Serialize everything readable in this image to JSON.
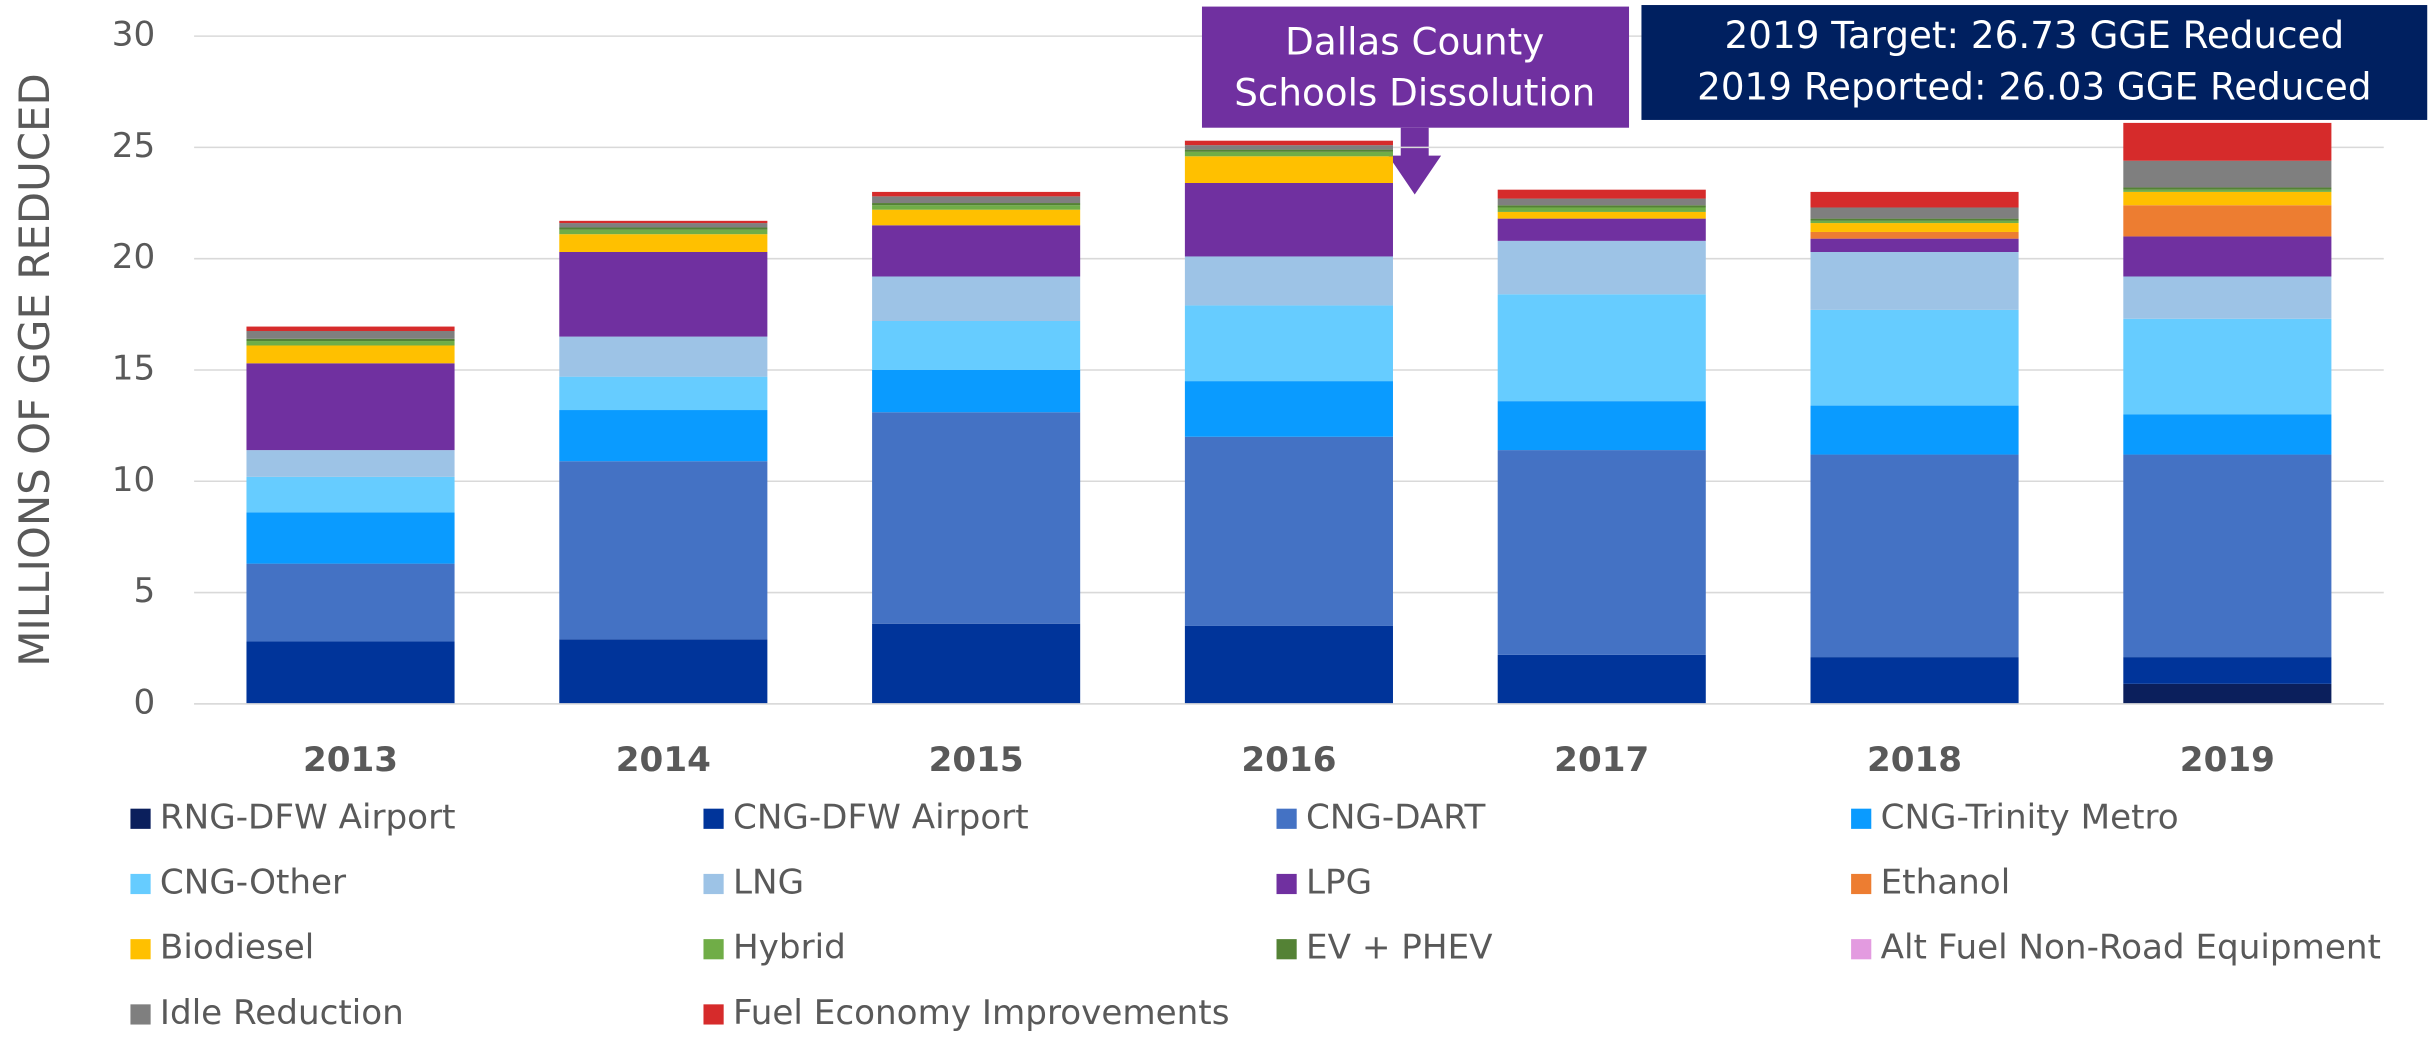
{
  "chart_data": {
    "type": "stacked_bar",
    "y_axis_label": "MILLIONS OF GGE REDUCED",
    "categories": [
      "2013",
      "2014",
      "2015",
      "2016",
      "2017",
      "2018",
      "2019"
    ],
    "ylim": [
      0,
      30
    ],
    "yticks": [
      0,
      5,
      10,
      15,
      20,
      25,
      30
    ],
    "grid": true,
    "legend": "bottom",
    "series": [
      {
        "name": "RNG-DFW Airport",
        "color": "#0b1f5c",
        "values": [
          0,
          0,
          0,
          0,
          0,
          0,
          0.9
        ]
      },
      {
        "name": "CNG-DFW Airport",
        "color": "#00349a",
        "values": [
          2.8,
          2.9,
          3.6,
          3.5,
          2.2,
          2.1,
          1.2
        ]
      },
      {
        "name": "CNG-DART",
        "color": "#4472c4",
        "values": [
          3.5,
          8.0,
          9.5,
          8.5,
          9.2,
          9.1,
          9.1
        ]
      },
      {
        "name": "CNG-Trinity Metro",
        "color": "#0a9bff",
        "values": [
          2.3,
          2.3,
          1.9,
          2.5,
          2.2,
          2.2,
          1.8
        ]
      },
      {
        "name": "CNG-Other",
        "color": "#66ccff",
        "values": [
          1.6,
          1.5,
          2.2,
          3.4,
          4.8,
          4.3,
          4.3
        ]
      },
      {
        "name": "LNG",
        "color": "#9dc3e6",
        "values": [
          1.2,
          1.8,
          2.0,
          2.2,
          2.4,
          2.6,
          1.9
        ]
      },
      {
        "name": "LPG",
        "color": "#7030a0",
        "values": [
          3.9,
          3.8,
          2.3,
          3.3,
          1.0,
          0.6,
          1.8
        ]
      },
      {
        "name": "Ethanol",
        "color": "#ed7d31",
        "values": [
          0,
          0,
          0,
          0,
          0,
          0.3,
          1.4
        ]
      },
      {
        "name": "Biodiesel",
        "color": "#ffc000",
        "values": [
          0.8,
          0.8,
          0.7,
          1.2,
          0.3,
          0.4,
          0.6
        ]
      },
      {
        "name": "Hybrid",
        "color": "#70ad47",
        "values": [
          0.2,
          0.2,
          0.2,
          0.2,
          0.2,
          0.1,
          0.1
        ]
      },
      {
        "name": "EV + PHEV",
        "color": "#548235",
        "values": [
          0.1,
          0.1,
          0.1,
          0.1,
          0.1,
          0.1,
          0.1
        ]
      },
      {
        "name": "Alt Fuel Non-Road Equipment",
        "color": "#e39be0",
        "values": [
          0,
          0,
          0,
          0,
          0,
          0,
          0
        ]
      },
      {
        "name": "Idle Reduction",
        "color": "#7f7f7f",
        "values": [
          0.35,
          0.2,
          0.3,
          0.2,
          0.3,
          0.5,
          1.2
        ]
      },
      {
        "name": "Fuel Economy Improvements",
        "color": "#d62b2b",
        "values": [
          0.2,
          0.1,
          0.2,
          0.2,
          0.4,
          0.7,
          1.7
        ]
      }
    ],
    "annotations": [
      {
        "lines": [
          "Dallas County",
          "Schools Dissolution"
        ],
        "color": "#7030a0"
      },
      {
        "lines": [
          "2019 Target:  26.73 GGE Reduced",
          "2019 Reported:  26.03 GGE Reduced"
        ],
        "color": "#002060"
      }
    ]
  }
}
